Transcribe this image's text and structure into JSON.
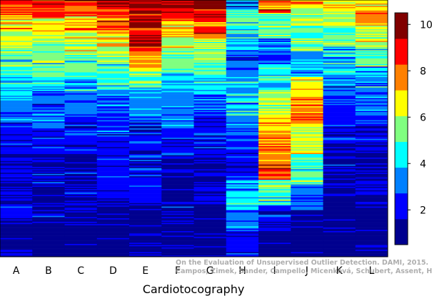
{
  "chart_data": {
    "type": "heatmap",
    "title": "",
    "xlabel": "Cardiotocography",
    "ylabel": "",
    "categories": [
      "A",
      "B",
      "C",
      "D",
      "E",
      "F",
      "G",
      "H",
      "I",
      "J",
      "K",
      "L"
    ],
    "color_scale": {
      "min": 0.5,
      "max": 10.5,
      "ticks": [
        2,
        4,
        6,
        8,
        10
      ],
      "colors": [
        "#00008f",
        "#0000ff",
        "#0080ff",
        "#00ffff",
        "#80ff80",
        "#ffff00",
        "#ff8000",
        "#ff0000",
        "#800000"
      ]
    },
    "rows_per_column": 220,
    "columns": [
      {
        "name": "A",
        "bands": [
          [
            0.02,
            9
          ],
          [
            0.06,
            8
          ],
          [
            0.12,
            7
          ],
          [
            0.2,
            6
          ],
          [
            0.3,
            5
          ],
          [
            0.38,
            4
          ],
          [
            0.5,
            3
          ],
          [
            0.6,
            2
          ],
          [
            0.85,
            1.5
          ],
          [
            1,
            1
          ]
        ]
      },
      {
        "name": "B",
        "bands": [
          [
            0.03,
            9
          ],
          [
            0.07,
            8
          ],
          [
            0.13,
            7
          ],
          [
            0.21,
            6
          ],
          [
            0.3,
            5
          ],
          [
            0.36,
            4
          ],
          [
            0.5,
            3
          ],
          [
            0.62,
            2
          ],
          [
            0.85,
            1.5
          ],
          [
            1,
            1
          ]
        ]
      },
      {
        "name": "C",
        "bands": [
          [
            0.02,
            9
          ],
          [
            0.06,
            8
          ],
          [
            0.12,
            7
          ],
          [
            0.2,
            6
          ],
          [
            0.3,
            5
          ],
          [
            0.36,
            4
          ],
          [
            0.46,
            3
          ],
          [
            0.6,
            2
          ],
          [
            0.85,
            1.5
          ],
          [
            1,
            1
          ]
        ]
      },
      {
        "name": "D",
        "bands": [
          [
            0.02,
            10
          ],
          [
            0.06,
            9
          ],
          [
            0.12,
            8
          ],
          [
            0.18,
            7
          ],
          [
            0.25,
            6
          ],
          [
            0.35,
            5
          ],
          [
            0.45,
            3
          ],
          [
            0.55,
            2.5
          ],
          [
            0.78,
            2
          ],
          [
            1,
            1
          ]
        ]
      },
      {
        "name": "E",
        "bands": [
          [
            0.18,
            9.5
          ],
          [
            0.22,
            8
          ],
          [
            0.27,
            7
          ],
          [
            0.3,
            6
          ],
          [
            0.35,
            5
          ],
          [
            0.45,
            3.5
          ],
          [
            0.56,
            2.5
          ],
          [
            0.8,
            2
          ],
          [
            1,
            1
          ]
        ]
      },
      {
        "name": "F",
        "bands": [
          [
            0.03,
            10
          ],
          [
            0.08,
            9
          ],
          [
            0.14,
            7
          ],
          [
            0.2,
            6
          ],
          [
            0.28,
            5
          ],
          [
            0.36,
            4
          ],
          [
            0.5,
            3
          ],
          [
            0.62,
            2
          ],
          [
            0.85,
            1.5
          ],
          [
            1,
            1
          ]
        ]
      },
      {
        "name": "G",
        "bands": [
          [
            0.03,
            10
          ],
          [
            0.08,
            9
          ],
          [
            0.15,
            8
          ],
          [
            0.22,
            6
          ],
          [
            0.3,
            5
          ],
          [
            0.36,
            4
          ],
          [
            0.45,
            3
          ],
          [
            0.6,
            2
          ],
          [
            0.8,
            1.5
          ],
          [
            1,
            1
          ]
        ]
      },
      {
        "name": "H",
        "bands": [
          [
            0.04,
            3
          ],
          [
            0.1,
            5
          ],
          [
            0.2,
            4
          ],
          [
            0.3,
            3
          ],
          [
            0.45,
            4
          ],
          [
            0.55,
            3
          ],
          [
            0.7,
            2
          ],
          [
            0.82,
            4
          ],
          [
            0.9,
            3
          ],
          [
            1,
            2
          ]
        ]
      },
      {
        "name": "I",
        "bands": [
          [
            0.05,
            8
          ],
          [
            0.15,
            5
          ],
          [
            0.25,
            3
          ],
          [
            0.35,
            4
          ],
          [
            0.45,
            6
          ],
          [
            0.55,
            7
          ],
          [
            0.7,
            8
          ],
          [
            0.8,
            5
          ],
          [
            0.9,
            2
          ],
          [
            1,
            1
          ]
        ]
      },
      {
        "name": "J",
        "bands": [
          [
            0.03,
            7
          ],
          [
            0.1,
            6
          ],
          [
            0.2,
            5
          ],
          [
            0.3,
            4
          ],
          [
            0.38,
            7
          ],
          [
            0.48,
            8
          ],
          [
            0.6,
            6
          ],
          [
            0.72,
            5
          ],
          [
            0.82,
            3
          ],
          [
            1,
            1
          ]
        ]
      },
      {
        "name": "K",
        "bands": [
          [
            0.04,
            7
          ],
          [
            0.1,
            6
          ],
          [
            0.18,
            5
          ],
          [
            0.3,
            4
          ],
          [
            0.4,
            3
          ],
          [
            0.55,
            2
          ],
          [
            0.75,
            1.5
          ],
          [
            1,
            1
          ]
        ]
      },
      {
        "name": "L",
        "bands": [
          [
            0.04,
            7
          ],
          [
            0.1,
            8
          ],
          [
            0.18,
            6
          ],
          [
            0.26,
            5
          ],
          [
            0.34,
            4
          ],
          [
            0.45,
            3
          ],
          [
            0.55,
            2
          ],
          [
            0.8,
            1.5
          ],
          [
            1,
            1
          ]
        ]
      }
    ]
  },
  "watermark": {
    "line1": "On the Evaluation of Unsupervised Outlier Detection. DAMI, 2015.",
    "line2": "Campos, Zimek, Sander, Campello, Micenková, Schubert, Assent, Houle"
  }
}
